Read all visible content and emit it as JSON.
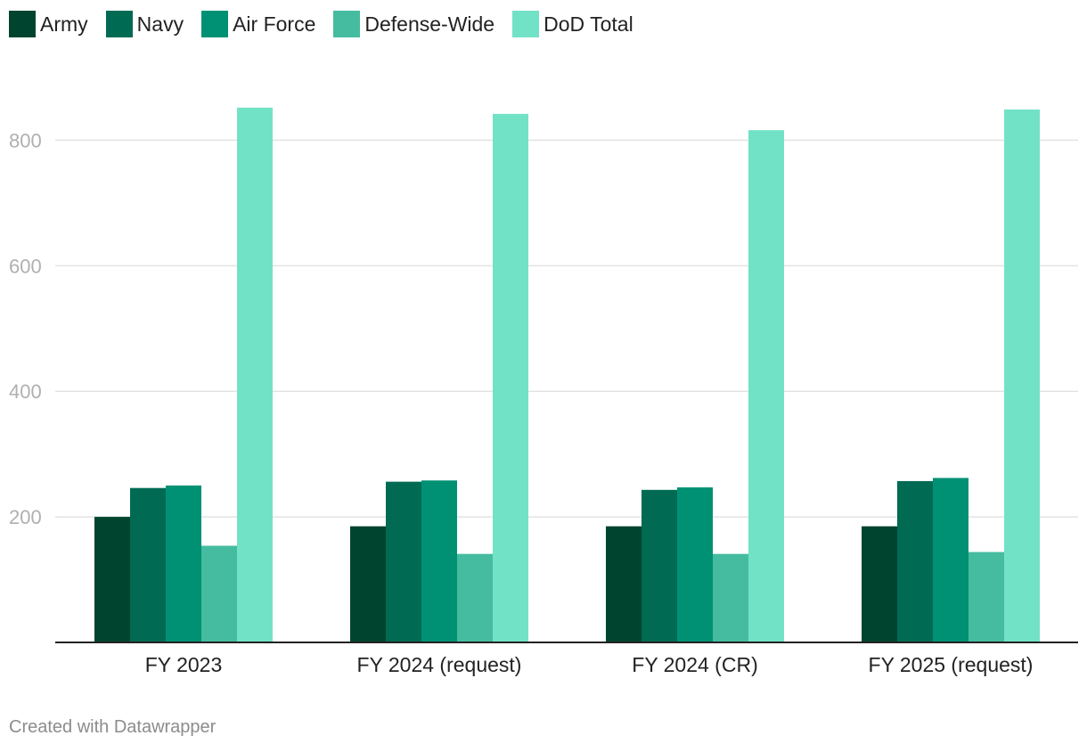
{
  "chart_data": {
    "type": "bar",
    "title": "",
    "xlabel": "",
    "ylabel": "",
    "ylim": [
      0,
      900
    ],
    "yticks": [
      200,
      400,
      600,
      800
    ],
    "grid": true,
    "legend_position": "top-left",
    "categories": [
      "FY 2023",
      "FY 2024 (request)",
      "FY 2024 (CR)",
      "FY 2025 (request)"
    ],
    "series": [
      {
        "name": "Army",
        "color": "#00442f",
        "values": [
          200,
          185,
          185,
          185
        ]
      },
      {
        "name": "Navy",
        "color": "#006a53",
        "values": [
          246,
          256,
          243,
          257
        ]
      },
      {
        "name": "Air Force",
        "color": "#009175",
        "values": [
          250,
          258,
          247,
          262
        ]
      },
      {
        "name": "Defense-Wide",
        "color": "#45bc9f",
        "values": [
          154,
          141,
          141,
          144
        ]
      },
      {
        "name": "DoD Total",
        "color": "#72e2c6",
        "values": [
          852,
          842,
          816,
          849
        ]
      }
    ]
  },
  "footer": {
    "credit": "Created with Datawrapper"
  }
}
